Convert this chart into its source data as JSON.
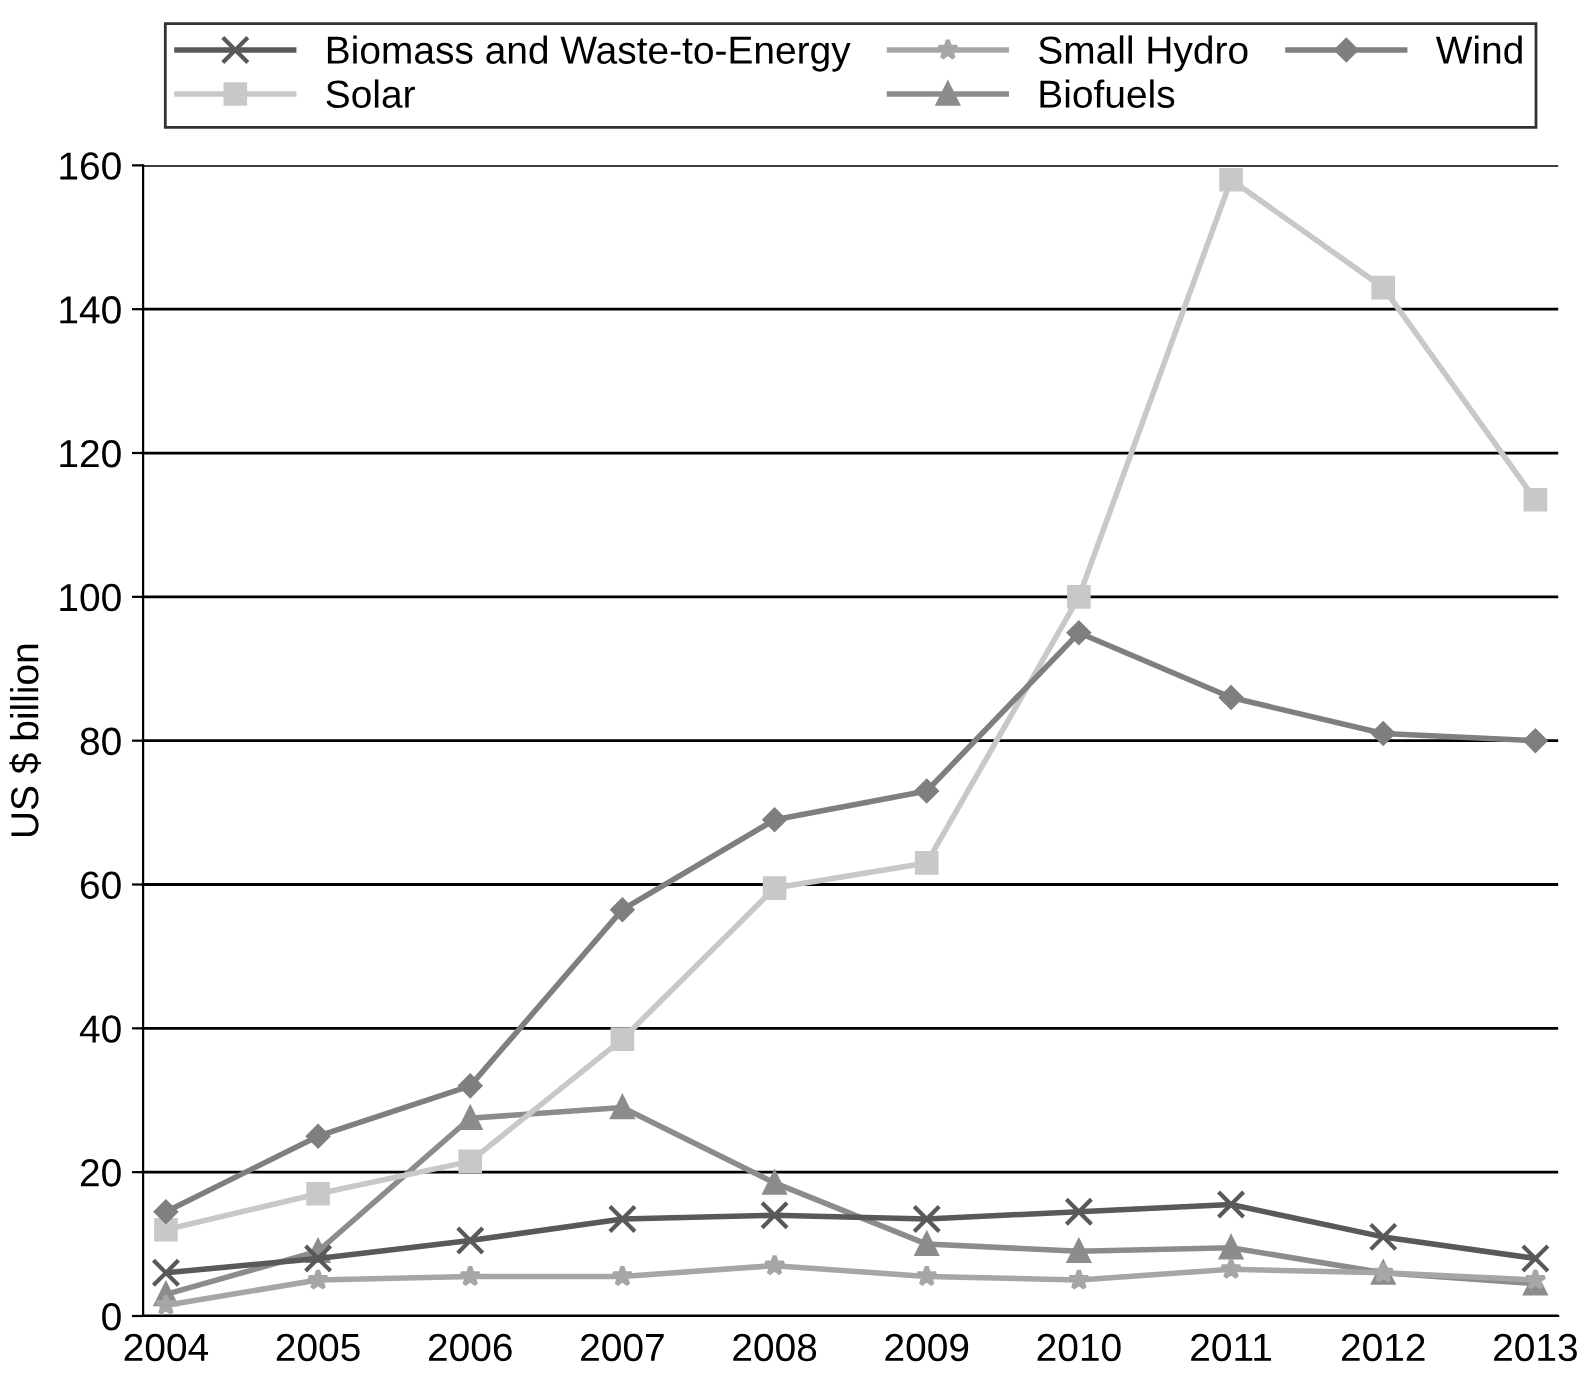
{
  "chart_data": {
    "type": "line",
    "ylabel": "US $ billion",
    "categories": [
      "2004",
      "2005",
      "2006",
      "2007",
      "2008",
      "2009",
      "2010",
      "2011",
      "2012",
      "2013"
    ],
    "series": [
      {
        "name": "Biomass and Waste-to-Energy",
        "color": "#595959",
        "marker": "cross",
        "values": [
          6,
          8,
          10.5,
          13.5,
          14,
          13.5,
          14.5,
          15.5,
          11,
          8
        ]
      },
      {
        "name": "Small Hydro",
        "color": "#a6a6a6",
        "marker": "star",
        "values": [
          1.5,
          5,
          5.5,
          5.5,
          7,
          5.5,
          5,
          6.5,
          6,
          5
        ]
      },
      {
        "name": "Wind",
        "color": "#7f7f7f",
        "marker": "diamond",
        "values": [
          14.5,
          25,
          32,
          56.5,
          69,
          73,
          95,
          86,
          81,
          80
        ]
      },
      {
        "name": "Solar",
        "color": "#c8c8c8",
        "marker": "square",
        "values": [
          12,
          17,
          21.5,
          38.5,
          59.5,
          63,
          100,
          158,
          143,
          113.5
        ]
      },
      {
        "name": "Biofuels",
        "color": "#8c8c8c",
        "marker": "triangle",
        "values": [
          3,
          9,
          27.5,
          29,
          18.5,
          10,
          9,
          9.5,
          6,
          4.5
        ]
      }
    ],
    "ylim": [
      0,
      160
    ],
    "yticks": [
      0,
      20,
      40,
      60,
      80,
      100,
      120,
      140,
      160
    ],
    "grid": "y",
    "legend": "top",
    "line_style": "solid"
  }
}
